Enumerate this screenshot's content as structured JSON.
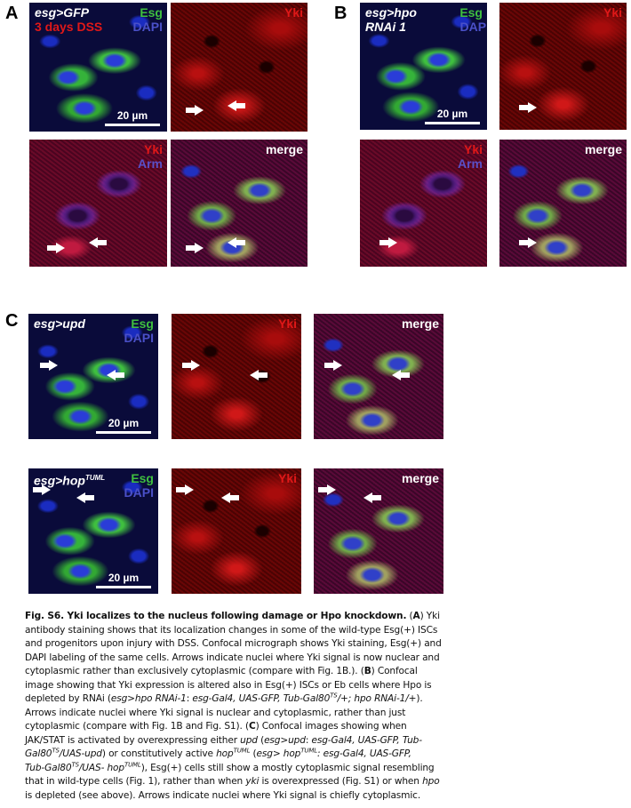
{
  "panels": {
    "A": {
      "letter": "A",
      "genotype": "esg>GFP",
      "condition": "3 days DSS",
      "p1": {
        "ch1": "Esg",
        "ch2": "DAPI",
        "scale": "20 µm"
      },
      "p2": {
        "ch1": "Yki"
      },
      "p3": {
        "ch1": "Yki",
        "ch2": "Arm"
      },
      "p4": {
        "ch1": "merge"
      }
    },
    "B": {
      "letter": "B",
      "genotype_line1": "esg>hpo",
      "genotype_line2": "RNAi 1",
      "p1": {
        "ch1": "Esg",
        "ch2": "DAPI",
        "scale": "20 µm"
      },
      "p2": {
        "ch1": "Yki"
      },
      "p3": {
        "ch1": "Yki",
        "ch2": "Arm"
      },
      "p4": {
        "ch1": "merge"
      }
    },
    "C": {
      "letter": "C",
      "row1": {
        "genotype": "esg>upd",
        "ch1": "Esg",
        "ch2": "DAPI",
        "scale": "20 µm",
        "red": "Yki",
        "merge": "merge"
      },
      "row2": {
        "genotype": "esg>hop",
        "genotype_sup": "TUML",
        "ch1": "Esg",
        "ch2": "DAPI",
        "scale": "20 µm",
        "red": "Yki",
        "merge": "merge"
      }
    }
  },
  "colors": {
    "esg": "#3fbf3f",
    "dapi": "#4a50c8",
    "yki": "#e01818",
    "arm": "#5a50c8"
  },
  "caption": [
    [
      {
        "t": "Fig. S6. Yki localizes to the nucleus following damage or Hpo knockdown.",
        "s": "b"
      },
      {
        "t": " (",
        "s": ""
      },
      {
        "t": "A",
        "s": "b"
      },
      {
        "t": ") Yki",
        "s": ""
      }
    ],
    [
      {
        "t": "antibody staining shows that its localization changes in some of the wild-type Esg(+) ISCs",
        "s": ""
      }
    ],
    [
      {
        "t": "and progenitors upon injury with DSS. Confocal micrograph shows Yki staining, Esg(+) and",
        "s": ""
      }
    ],
    [
      {
        "t": "DAPI labeling of the same cells. Arrows indicate nuclei where Yki signal is now nuclear and",
        "s": ""
      }
    ],
    [
      {
        "t": "cytoplasmic rather than exclusively cytoplasmic (compare with Fig. 1B.). (",
        "s": ""
      },
      {
        "t": "B",
        "s": "b"
      },
      {
        "t": ") Confocal",
        "s": ""
      }
    ],
    [
      {
        "t": "image showing that Yki expression is altered also in Esg(+) ISCs or Eb cells where Hpo is",
        "s": ""
      }
    ],
    [
      {
        "t": "depleted by RNAi (",
        "s": ""
      },
      {
        "t": "esg>hpo RNAi-1",
        "s": "i"
      },
      {
        "t": ": ",
        "s": ""
      },
      {
        "t": "esg-Gal4, UAS-GFP, Tub-Gal80",
        "s": "i"
      },
      {
        "t": "TS",
        "s": "isup"
      },
      {
        "t": "/+; hpo RNAi-1/+",
        "s": "i"
      },
      {
        "t": ").",
        "s": ""
      }
    ],
    [
      {
        "t": "Arrows indicate nuclei where Yki signal is nuclear and cytoplasmic, rather than just",
        "s": ""
      }
    ],
    [
      {
        "t": "cytoplasmic (compare with Fig. 1B and Fig. S1). (",
        "s": ""
      },
      {
        "t": "C",
        "s": "b"
      },
      {
        "t": ") Confocal images showing when",
        "s": ""
      }
    ],
    [
      {
        "t": "JAK/STAT is activated by overexpressing either ",
        "s": ""
      },
      {
        "t": "upd",
        "s": "i"
      },
      {
        "t": " (",
        "s": ""
      },
      {
        "t": "esg>upd",
        "s": "i"
      },
      {
        "t": ": ",
        "s": ""
      },
      {
        "t": "esg-Gal4, UAS-GFP, Tub-",
        "s": "i"
      }
    ],
    [
      {
        "t": "Gal80",
        "s": "i"
      },
      {
        "t": "TS",
        "s": "isup"
      },
      {
        "t": "/UAS-upd",
        "s": "i"
      },
      {
        "t": ") or constitutively active ",
        "s": ""
      },
      {
        "t": "hop",
        "s": "i"
      },
      {
        "t": "TUML",
        "s": "isup"
      },
      {
        "t": " (",
        "s": ""
      },
      {
        "t": "esg> hop",
        "s": "i"
      },
      {
        "t": "TUML",
        "s": "isup"
      },
      {
        "t": ": esg-Gal4, UAS-GFP,",
        "s": "i"
      }
    ],
    [
      {
        "t": "Tub-Gal80",
        "s": "i"
      },
      {
        "t": "TS",
        "s": "isup"
      },
      {
        "t": "/UAS- hop",
        "s": "i"
      },
      {
        "t": "TUML",
        "s": "isup"
      },
      {
        "t": "), Esg(+) cells still show a mostly cytoplasmic signal resembling",
        "s": ""
      }
    ],
    [
      {
        "t": "that in wild-type cells (Fig. 1), rather than when ",
        "s": ""
      },
      {
        "t": "yki",
        "s": "i"
      },
      {
        "t": " is overexpressed (Fig. S1) or when ",
        "s": ""
      },
      {
        "t": "hpo",
        "s": "i"
      }
    ],
    [
      {
        "t": "is depleted (see above). Arrows indicate nuclei where Yki signal is chiefly cytoplasmic.",
        "s": ""
      }
    ]
  ]
}
